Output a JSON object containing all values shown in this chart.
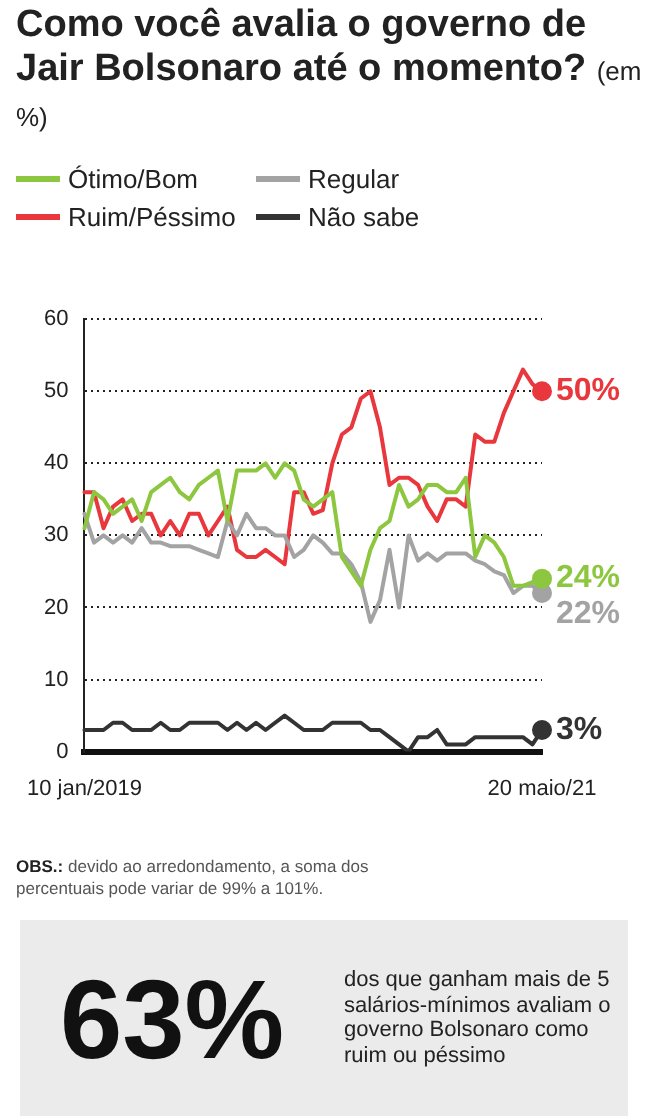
{
  "chart_data": {
    "type": "line",
    "title": "Como você avalia o governo de Jair Bolsonaro até o momento?",
    "subtitle": "(em %)",
    "categories": [
      "10 jan/2019",
      null,
      null,
      null,
      null,
      null,
      null,
      null,
      null,
      null,
      null,
      null,
      null,
      null,
      null,
      null,
      null,
      null,
      null,
      null,
      null,
      null,
      null,
      null,
      null,
      null,
      null,
      null,
      null,
      null,
      null,
      null,
      null,
      null,
      null,
      null,
      null,
      null,
      null,
      null,
      null,
      null,
      null,
      null,
      null,
      null,
      null,
      null,
      "20 maio/21"
    ],
    "series": [
      {
        "name": "Ótimo/Bom",
        "color": "#8dc63f",
        "values": [
          31,
          36,
          35,
          33,
          34,
          35,
          32,
          36,
          37,
          38,
          36,
          35,
          37,
          38,
          39,
          32,
          39,
          39,
          39,
          40,
          38,
          40,
          39,
          35,
          34,
          35,
          36,
          27,
          25,
          23,
          28,
          31,
          32,
          37,
          34,
          35,
          37,
          37,
          36,
          36,
          38,
          27,
          30,
          29,
          27,
          23,
          23,
          23.5,
          24
        ],
        "value_labels": [
          null,
          null,
          null,
          null,
          null,
          null,
          null,
          null,
          null,
          null,
          null,
          null,
          null,
          null,
          null,
          null,
          null,
          null,
          null,
          null,
          null,
          null,
          null,
          null,
          null,
          null,
          null,
          null,
          null,
          null,
          null,
          null,
          null,
          null,
          null,
          null,
          null,
          null,
          null,
          null,
          null,
          null,
          null,
          null,
          null,
          null,
          null,
          null,
          "24%"
        ]
      },
      {
        "name": "Regular",
        "color": "#a3a3a3",
        "values": [
          33,
          29,
          30,
          29,
          30,
          29,
          31,
          29,
          29,
          28.5,
          28.5,
          28.5,
          28,
          27.5,
          27,
          32,
          30,
          33,
          31,
          31,
          30,
          30,
          27,
          28,
          30,
          29,
          27.5,
          27.5,
          26,
          23.5,
          18,
          21,
          28,
          20,
          30,
          26.5,
          27.5,
          26.5,
          27.5,
          27.5,
          27.5,
          26.5,
          26,
          25,
          24.5,
          22,
          23,
          23,
          22
        ],
        "value_labels": [
          null,
          null,
          null,
          null,
          null,
          null,
          null,
          null,
          null,
          null,
          null,
          null,
          null,
          null,
          null,
          null,
          null,
          null,
          null,
          null,
          null,
          null,
          null,
          null,
          null,
          null,
          null,
          null,
          null,
          null,
          null,
          null,
          null,
          null,
          null,
          null,
          null,
          null,
          null,
          null,
          null,
          null,
          null,
          null,
          null,
          null,
          null,
          null,
          "22%"
        ]
      },
      {
        "name": "Ruim/Péssimo",
        "color": "#e8383d",
        "values": [
          36,
          36,
          31,
          34,
          35,
          32,
          33,
          33,
          30,
          32,
          30,
          33,
          33,
          30,
          32,
          34,
          28,
          27,
          27,
          28,
          27,
          26,
          36,
          36,
          33,
          33.5,
          40,
          44,
          45,
          49,
          50,
          45,
          37,
          38,
          38,
          37,
          34,
          32,
          35,
          35,
          34,
          44,
          43,
          43,
          47,
          50,
          53,
          51,
          50
        ],
        "value_labels": [
          null,
          null,
          null,
          null,
          null,
          null,
          null,
          null,
          null,
          null,
          null,
          null,
          null,
          null,
          null,
          null,
          null,
          null,
          null,
          null,
          null,
          null,
          null,
          null,
          null,
          null,
          null,
          null,
          null,
          null,
          null,
          null,
          null,
          null,
          null,
          null,
          null,
          null,
          null,
          null,
          null,
          null,
          null,
          null,
          null,
          null,
          null,
          null,
          "50%"
        ]
      },
      {
        "name": "Não sabe",
        "color": "#333333",
        "values": [
          3,
          3,
          3,
          4,
          4,
          3,
          3,
          3,
          4,
          3,
          3,
          4,
          4,
          4,
          4,
          3,
          4,
          3,
          4,
          3,
          4,
          5,
          4,
          3,
          3,
          3,
          4,
          4,
          4,
          4,
          3,
          3,
          2,
          1,
          0,
          2,
          2,
          3,
          1,
          1,
          1,
          2,
          2,
          2,
          2,
          2,
          2,
          1,
          3
        ],
        "value_labels": [
          null,
          null,
          null,
          null,
          null,
          null,
          null,
          null,
          null,
          null,
          null,
          null,
          null,
          null,
          null,
          null,
          null,
          null,
          null,
          null,
          null,
          null,
          null,
          null,
          null,
          null,
          null,
          null,
          null,
          null,
          null,
          null,
          null,
          null,
          null,
          null,
          null,
          null,
          null,
          null,
          null,
          null,
          null,
          null,
          null,
          null,
          null,
          null,
          "3%"
        ]
      }
    ],
    "ylim": [
      0,
      60
    ],
    "yticks": [
      0,
      10,
      20,
      30,
      40,
      50,
      60
    ],
    "grid": "y",
    "legend": "top left",
    "annotations": [
      "OBS.: devido ao arredondamento, a soma dos percentuais pode variar de 99% a 101%.",
      "63%",
      "dos que ganham mais de 5 salários-mínimos avaliam o governo Bolsonaro como ruim ou péssimo"
    ]
  }
}
